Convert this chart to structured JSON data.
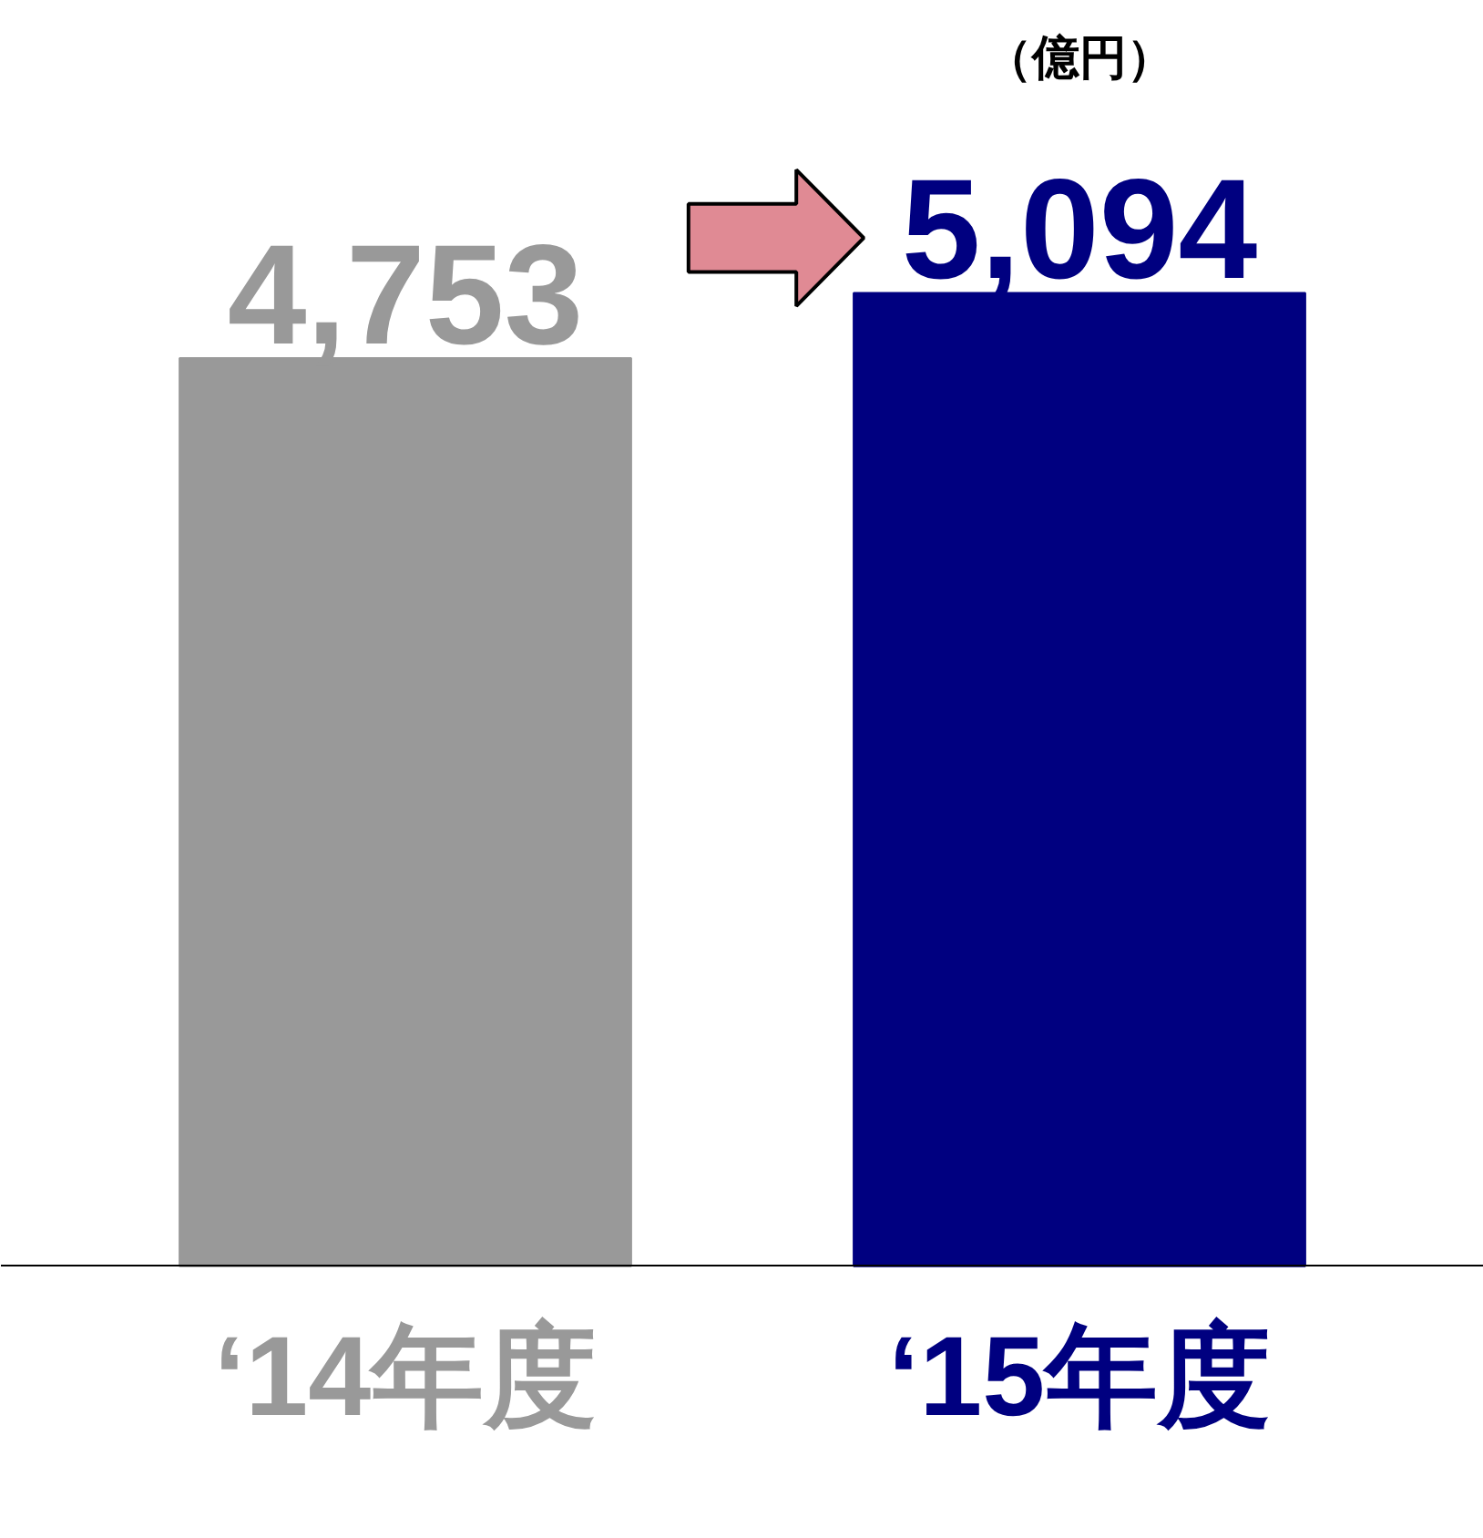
{
  "chart_data": {
    "type": "bar",
    "categories": [
      "‘14年度",
      "‘15年度"
    ],
    "values": [
      4753,
      5094
    ],
    "colors": [
      "#999999",
      "#000080"
    ],
    "value_labels": [
      "4,753",
      "5,094"
    ],
    "annotations": [
      "（億円）"
    ]
  }
}
